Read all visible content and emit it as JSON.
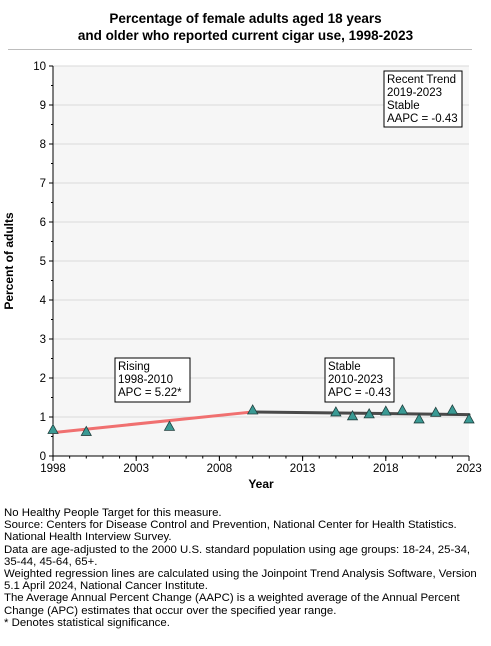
{
  "title_line1": "Percentage of female adults aged 18 years",
  "title_line2": "and older who reported current cigar use, 1998-2023",
  "chart_data": {
    "type": "scatter",
    "title": "Percentage of female adults aged 18 years and older who reported current cigar use, 1998-2023",
    "xlabel": "Year",
    "ylabel": "Percent of adults",
    "xlim": [
      1998,
      2023
    ],
    "ylim": [
      0,
      10
    ],
    "x_ticks": [
      "1998",
      "2003",
      "2008",
      "2013",
      "2018",
      "2023"
    ],
    "y_ticks": [
      "0",
      "1",
      "2",
      "3",
      "4",
      "5",
      "6",
      "7",
      "8",
      "9",
      "10"
    ],
    "grid": true,
    "points": {
      "x": [
        1998,
        2000,
        2005,
        2010,
        2015,
        2016,
        2017,
        2018,
        2019,
        2020,
        2021,
        2022,
        2023
      ],
      "y": [
        0.68,
        0.63,
        0.76,
        1.18,
        1.13,
        1.03,
        1.08,
        1.15,
        1.18,
        0.95,
        1.12,
        1.18,
        0.95
      ]
    },
    "trend_lines": [
      {
        "x": [
          1998,
          2010
        ],
        "y": [
          0.6,
          1.13
        ],
        "color": "#f07070"
      },
      {
        "x": [
          2010,
          2023
        ],
        "y": [
          1.13,
          1.06
        ],
        "color": "#4a4a4a"
      }
    ],
    "marker_color": "#3a9a94",
    "annotations": [
      {
        "lines": [
          "Recent Trend",
          "2019-2023",
          "Stable",
          "AAPC = -0.43"
        ]
      },
      {
        "lines": [
          "Rising",
          "1998-2010",
          "APC =  5.22*"
        ]
      },
      {
        "lines": [
          "Stable",
          "2010-2023",
          "APC = -0.43"
        ]
      }
    ]
  },
  "footnotes": [
    "No Healthy People Target for this measure.",
    "Source: Centers for Disease Control and Prevention, National Center for Health Statistics. National Health Interview Survey.",
    "Data are age-adjusted to the 2000 U.S. standard population using age groups: 18-24, 25-34, 35-44, 45-64, 65+.",
    "Weighted regression lines are calculated using the Joinpoint Trend Analysis Software, Version 5.1 April 2024, National Cancer Institute.",
    "The Average Annual Percent Change (AAPC) is a weighted average of the Annual Percent Change (APC) estimates that occur over the specified year range.",
    "* Denotes statistical significance."
  ]
}
